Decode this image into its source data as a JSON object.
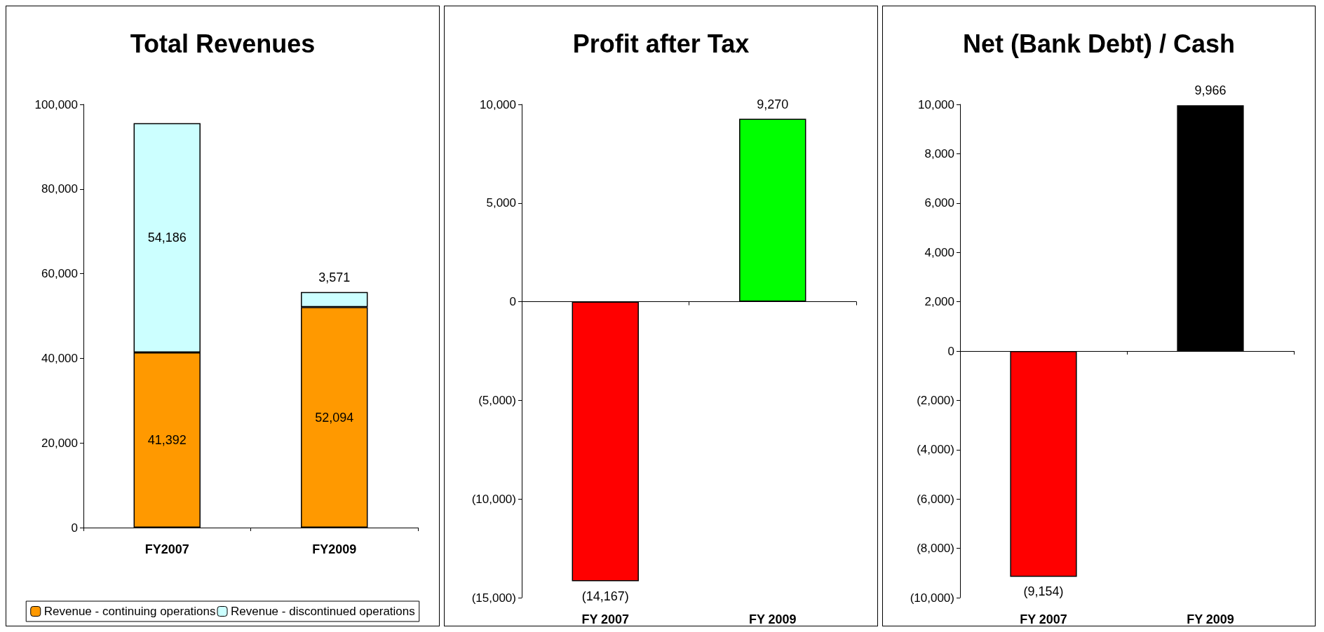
{
  "chart_data": [
    {
      "type": "bar",
      "title": "Total Revenues",
      "categories": [
        "FY2007",
        "FY2009"
      ],
      "stacked": true,
      "legend": "bottom",
      "series": [
        {
          "name": "Revenue - continuing operations",
          "color": "#ff9900",
          "values": [
            41392,
            52094
          ],
          "value_labels": [
            "41,392",
            "52,094"
          ]
        },
        {
          "name": "Revenue - discontinued operations",
          "color": "#ccffff",
          "values": [
            54186,
            3571
          ],
          "value_labels": [
            "54,186",
            "3,571"
          ]
        }
      ],
      "ylim": [
        0,
        100000
      ],
      "yticks": [
        {
          "value": 0,
          "label": "0"
        },
        {
          "value": 20000,
          "label": "20,000"
        },
        {
          "value": 40000,
          "label": "40,000"
        },
        {
          "value": 60000,
          "label": "60,000"
        },
        {
          "value": 80000,
          "label": "80,000"
        },
        {
          "value": 100000,
          "label": "100,000"
        }
      ]
    },
    {
      "type": "bar",
      "title": "Profit after Tax",
      "categories": [
        "FY 2007",
        "FY 2009"
      ],
      "values": [
        -14167,
        9270
      ],
      "colors": [
        "#ff0000",
        "#00ff00"
      ],
      "value_labels": [
        "(14,167)",
        "9,270"
      ],
      "ylim": [
        -15000,
        10000
      ],
      "yticks": [
        {
          "value": -15000,
          "label": "(15,000)"
        },
        {
          "value": -10000,
          "label": "(10,000)"
        },
        {
          "value": -5000,
          "label": "(5,000)"
        },
        {
          "value": 0,
          "label": "0"
        },
        {
          "value": 5000,
          "label": "5,000"
        },
        {
          "value": 10000,
          "label": "10,000"
        }
      ]
    },
    {
      "type": "bar",
      "title": "Net (Bank Debt) / Cash",
      "categories": [
        "FY 2007",
        "FY 2009"
      ],
      "values": [
        -9154,
        9966
      ],
      "colors": [
        "#ff0000",
        "#000000"
      ],
      "value_labels": [
        "(9,154)",
        "9,966"
      ],
      "ylim": [
        -10000,
        10000
      ],
      "yticks": [
        {
          "value": -10000,
          "label": "(10,000)"
        },
        {
          "value": -8000,
          "label": "(8,000)"
        },
        {
          "value": -6000,
          "label": "(6,000)"
        },
        {
          "value": -4000,
          "label": "(4,000)"
        },
        {
          "value": -2000,
          "label": "(2,000)"
        },
        {
          "value": 0,
          "label": "0"
        },
        {
          "value": 2000,
          "label": "2,000"
        },
        {
          "value": 4000,
          "label": "4,000"
        },
        {
          "value": 6000,
          "label": "6,000"
        },
        {
          "value": 8000,
          "label": "8,000"
        },
        {
          "value": 10000,
          "label": "10,000"
        }
      ]
    }
  ]
}
